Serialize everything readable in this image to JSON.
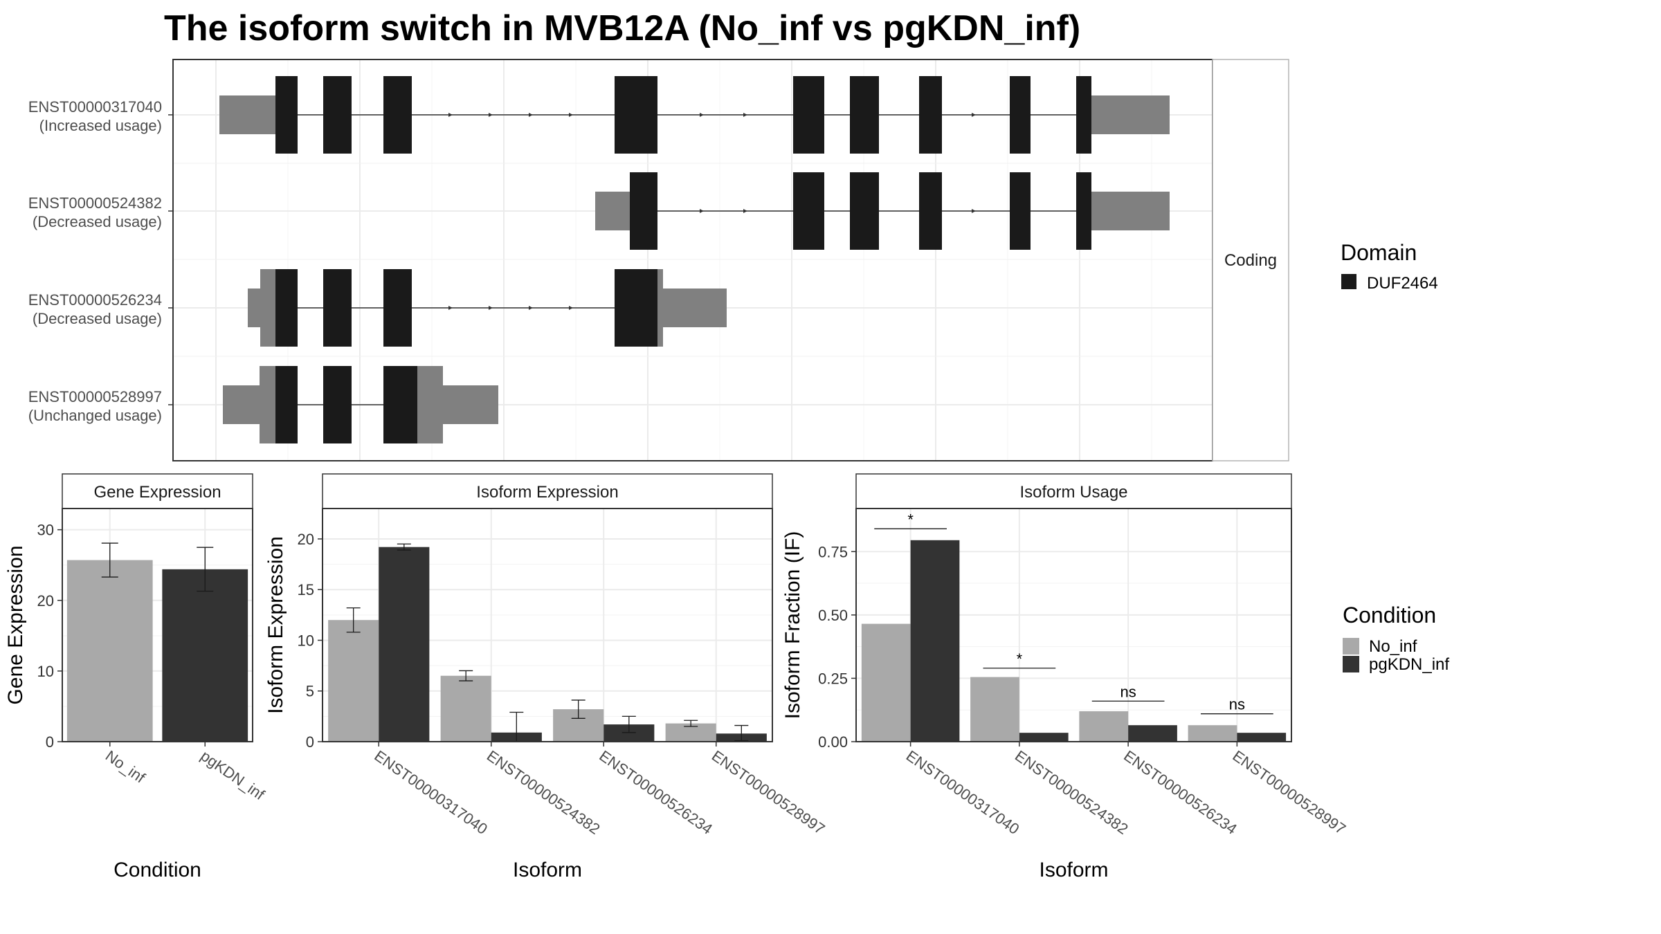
{
  "title": "The isoform switch in MVB12A (No_inf vs pgKDN_inf)",
  "colors": {
    "no_inf": "#a9a9a9",
    "pgkdn_inf": "#333333",
    "utr": "#808080",
    "cds": "#1a1a1a",
    "grid": "#ebebeb",
    "strip_bg": "#ffffff",
    "panel_border": "#333333"
  },
  "chart_data": [
    {
      "type": "transcript-structure",
      "facet_label": "Coding",
      "transcripts": [
        {
          "id": "ENST00000317040",
          "note": "(Increased usage)"
        },
        {
          "id": "ENST00000524382",
          "note": "(Decreased usage)"
        },
        {
          "id": "ENST00000526234",
          "note": "(Decreased usage)"
        },
        {
          "id": "ENST00000528997",
          "note": "(Unchanged usage)"
        }
      ],
      "legend": {
        "title": "Domain",
        "items": [
          {
            "name": "DUF2464",
            "color": "#1a1a1a"
          }
        ]
      }
    },
    {
      "type": "bar",
      "strip": "Gene Expression",
      "categories": [
        "No_inf",
        "pgKDN_inf"
      ],
      "values": [
        25.7,
        24.4
      ],
      "errors": [
        [
          23.3,
          28.1
        ],
        [
          21.3,
          27.5
        ]
      ],
      "ylim": [
        0,
        33
      ],
      "yticks": [
        0,
        10,
        20,
        30
      ],
      "xlabel": "Condition",
      "ylabel": "Gene Expression"
    },
    {
      "type": "bar",
      "strip": "Isoform Expression",
      "categories": [
        "ENST00000317040",
        "ENST00000524382",
        "ENST00000526234",
        "ENST00000528997"
      ],
      "series": [
        {
          "name": "No_inf",
          "values": [
            12.0,
            6.5,
            3.2,
            1.8
          ],
          "errors": [
            [
              10.8,
              13.2
            ],
            [
              6.0,
              7.0
            ],
            [
              2.3,
              4.1
            ],
            [
              1.5,
              2.1
            ]
          ]
        },
        {
          "name": "pgKDN_inf",
          "values": [
            19.2,
            0.9,
            1.7,
            0.8
          ],
          "errors": [
            [
              18.9,
              19.5
            ],
            [
              0.0,
              2.9
            ],
            [
              0.9,
              2.5
            ],
            [
              0.1,
              1.6
            ]
          ]
        }
      ],
      "ylim": [
        0,
        23
      ],
      "yticks": [
        0,
        5,
        10,
        15,
        20
      ],
      "xlabel": "Isoform",
      "ylabel": "Isoform Expression"
    },
    {
      "type": "bar",
      "strip": "Isoform Usage",
      "categories": [
        "ENST00000317040",
        "ENST00000524382",
        "ENST00000526234",
        "ENST00000528997"
      ],
      "series": [
        {
          "name": "No_inf",
          "values": [
            0.465,
            0.255,
            0.12,
            0.065
          ]
        },
        {
          "name": "pgKDN_inf",
          "values": [
            0.795,
            0.035,
            0.065,
            0.035
          ]
        }
      ],
      "significance": [
        "*",
        "*",
        "ns",
        "ns"
      ],
      "significance_y": [
        0.84,
        0.29,
        0.16,
        0.11
      ],
      "ylim": [
        0,
        0.92
      ],
      "yticks": [
        0.0,
        0.25,
        0.5,
        0.75
      ],
      "ytick_labels": [
        "0.00",
        "0.25",
        "0.50",
        "0.75"
      ],
      "xlabel": "Isoform",
      "ylabel": "Isoform Fraction (IF)",
      "legend": {
        "title": "Condition",
        "items": [
          {
            "name": "No_inf",
            "color": "#a9a9a9"
          },
          {
            "name": "pgKDN_inf",
            "color": "#333333"
          }
        ]
      }
    }
  ]
}
